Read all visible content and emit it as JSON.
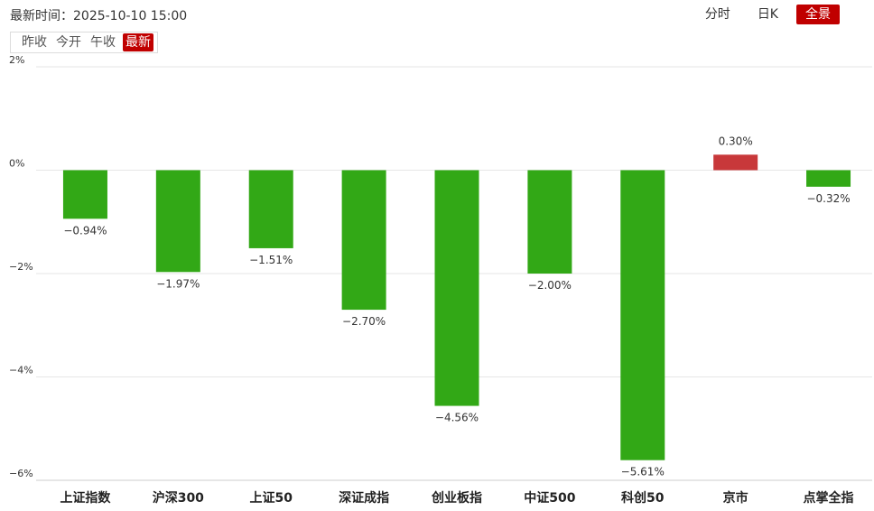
{
  "header": {
    "timestamp_label": "最新时间：",
    "timestamp_value": "2025-10-10 15:00"
  },
  "view_tabs": [
    {
      "label": "分时",
      "active": false
    },
    {
      "label": "日K",
      "active": false
    },
    {
      "label": "全景",
      "active": true
    }
  ],
  "base_tabs": [
    {
      "label": "昨收",
      "active": false
    },
    {
      "label": "今开",
      "active": false
    },
    {
      "label": "午收",
      "active": false
    },
    {
      "label": "最新",
      "active": true
    }
  ],
  "colors": {
    "up": "#c8383a",
    "down": "#32a816",
    "grid": "#e6e6e6",
    "accent": "#c00000"
  },
  "chart_data": {
    "type": "bar",
    "title": "",
    "xlabel": "",
    "ylabel": "",
    "categories": [
      "上证指数",
      "沪深300",
      "上证50",
      "深证成指",
      "创业板指",
      "中证500",
      "科创50",
      "京市",
      "点掌全指"
    ],
    "values": [
      -0.94,
      -1.97,
      -1.51,
      -2.7,
      -4.56,
      -2.0,
      -5.61,
      0.3,
      -0.32
    ],
    "value_labels": [
      "−0.94%",
      "−1.97%",
      "−1.51%",
      "−2.70%",
      "−4.56%",
      "−2.00%",
      "−5.61%",
      "0.30%",
      "−0.32%"
    ],
    "yticks": [
      2,
      0,
      -2,
      -4,
      -6
    ],
    "ytick_labels": [
      "2%",
      "0%",
      "−2%",
      "−4%",
      "−6%"
    ],
    "ylim": [
      -6,
      2
    ],
    "grid": true,
    "legend": "none"
  }
}
